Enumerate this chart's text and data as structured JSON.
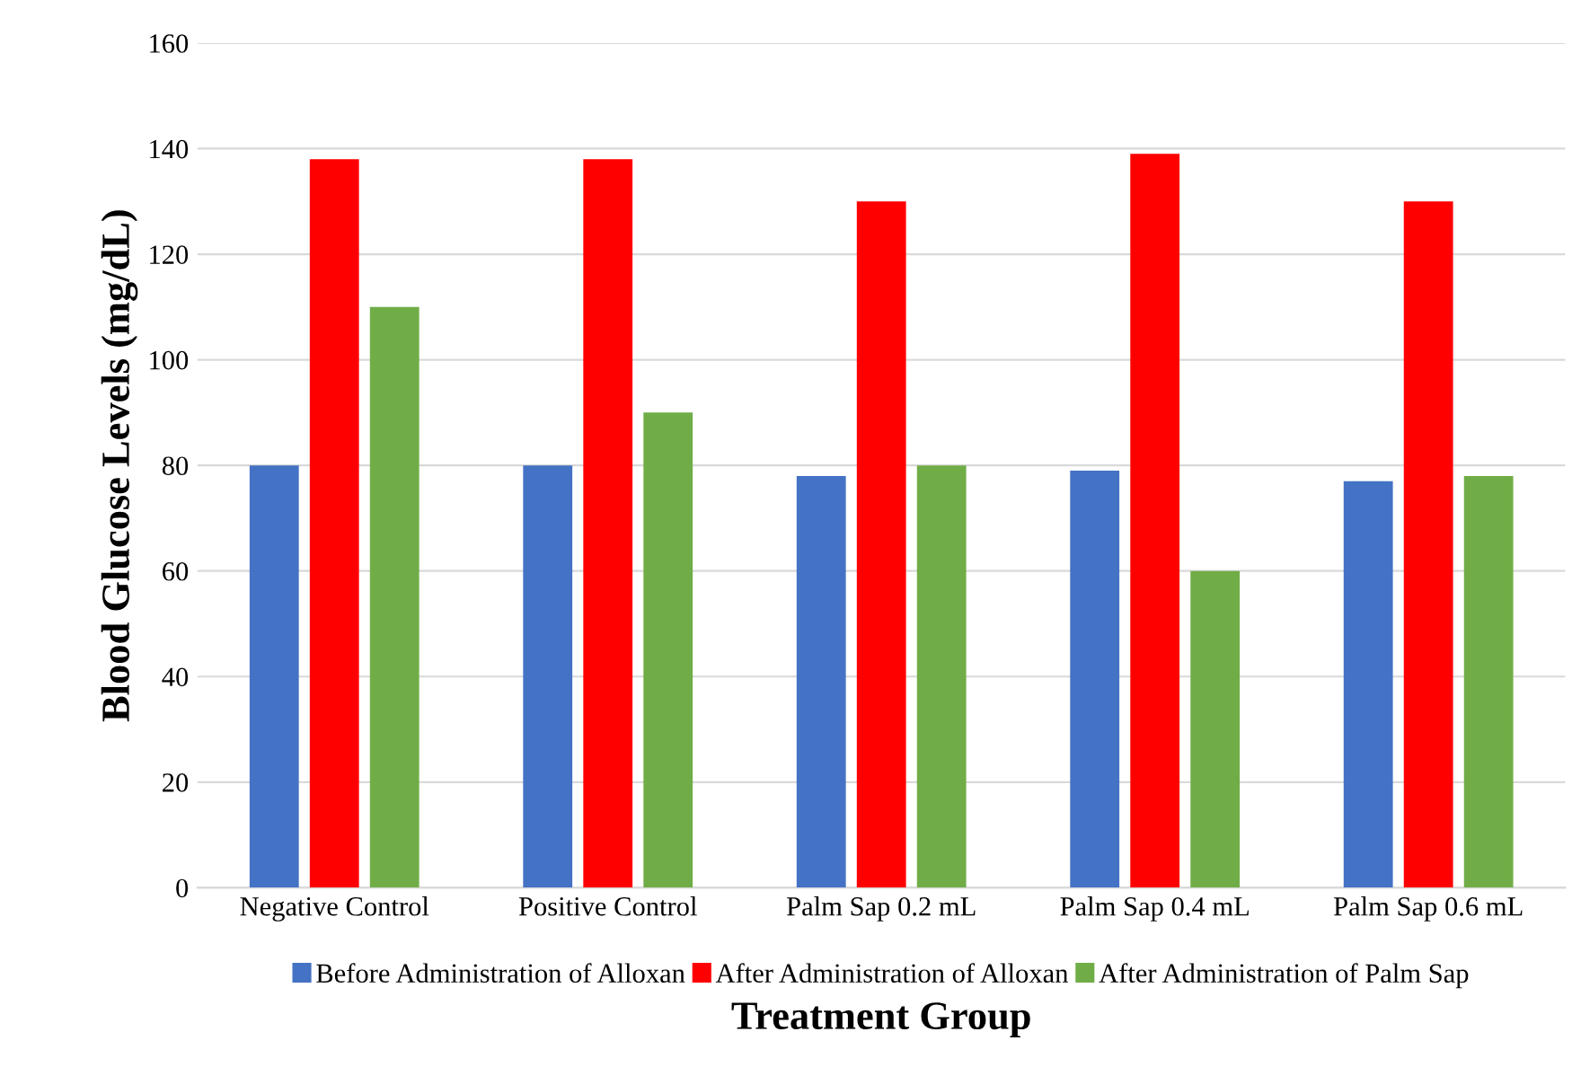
{
  "chart_data": {
    "type": "bar",
    "xlabel": "Treatment Group",
    "ylabel": "Blood Glucose Levels (mg/dL)",
    "categories": [
      "Negative Control",
      "Positive Control",
      "Palm Sap 0.2 mL",
      "Palm Sap 0.4 mL",
      "Palm Sap 0.6 mL"
    ],
    "series": [
      {
        "name": "Before Administration of Alloxan",
        "color": "#4472c4",
        "values": [
          80,
          80,
          78,
          79,
          77
        ]
      },
      {
        "name": "After Administration of Alloxan",
        "color": "#ff0000",
        "values": [
          138,
          138,
          130,
          139,
          130
        ]
      },
      {
        "name": "After Administration of Palm Sap",
        "color": "#70ad47",
        "values": [
          110,
          90,
          80,
          60,
          78
        ]
      }
    ],
    "ylim": [
      0,
      160
    ],
    "yticks": [
      0,
      20,
      40,
      60,
      80,
      100,
      120,
      140,
      160
    ],
    "grid": "y",
    "legend": "bottom"
  }
}
